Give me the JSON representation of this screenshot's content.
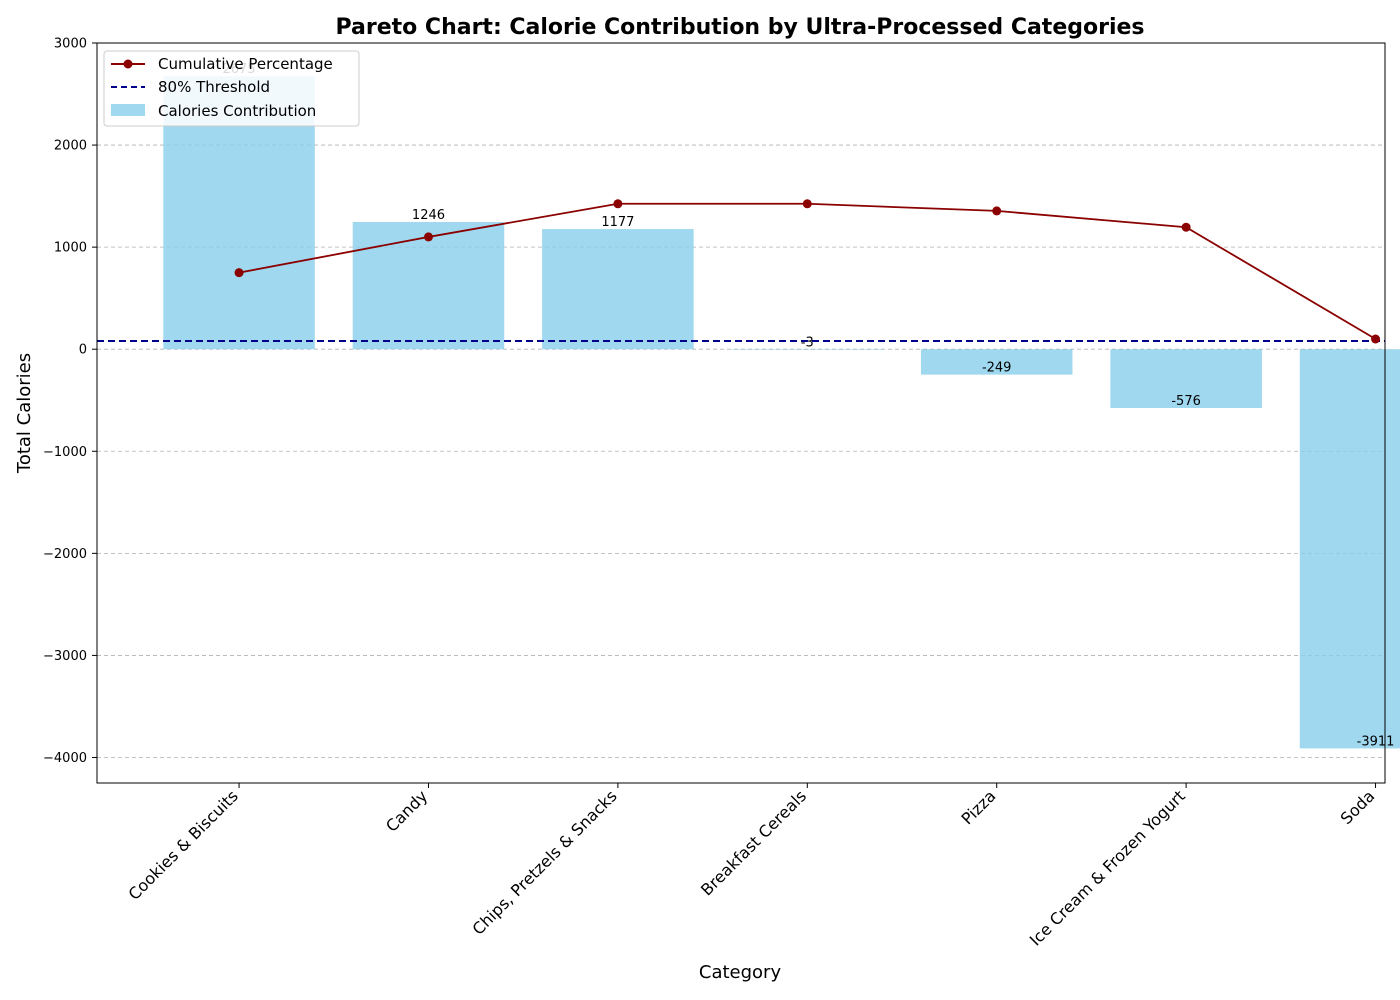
{
  "chart_data": {
    "type": "bar",
    "title": "Pareto Chart: Calorie Contribution by Ultra-Processed Categories",
    "xlabel": "Category",
    "ylabel": "Total Calories",
    "categories": [
      "Cookies & Biscuits",
      "Candy",
      "Chips, Pretzels & Snacks",
      "Breakfast Cereals",
      "Pizza",
      "Ice Cream & Frozen Yogurt",
      "Soda"
    ],
    "series": [
      {
        "name": "Calories Contribution",
        "type": "bar",
        "values": [
          2675,
          1246,
          1177,
          -3,
          -249,
          -576,
          -3911
        ],
        "value_labels": [
          "2675",
          "1246",
          "1177",
          "-3",
          "-249",
          "-576",
          "-3911"
        ],
        "color": "#87CEEB"
      },
      {
        "name": "Cumulative Percentage",
        "type": "line",
        "values": [
          750,
          1100,
          1425,
          1425,
          1355,
          1195,
          100
        ],
        "color": "#8B0000"
      },
      {
        "name": "80% Threshold",
        "type": "hline",
        "value": 80,
        "color": "#00008B"
      }
    ],
    "ylim": [
      -4250,
      3000
    ],
    "yticks": [
      3000,
      2000,
      1000,
      0,
      -1000,
      -2000,
      -3000,
      -4000
    ],
    "ytick_labels": [
      "3000",
      "2000",
      "1000",
      "0",
      "−1000",
      "−2000",
      "−3000",
      "−4000"
    ],
    "grid": "y-dashed",
    "legend": "top-left"
  }
}
